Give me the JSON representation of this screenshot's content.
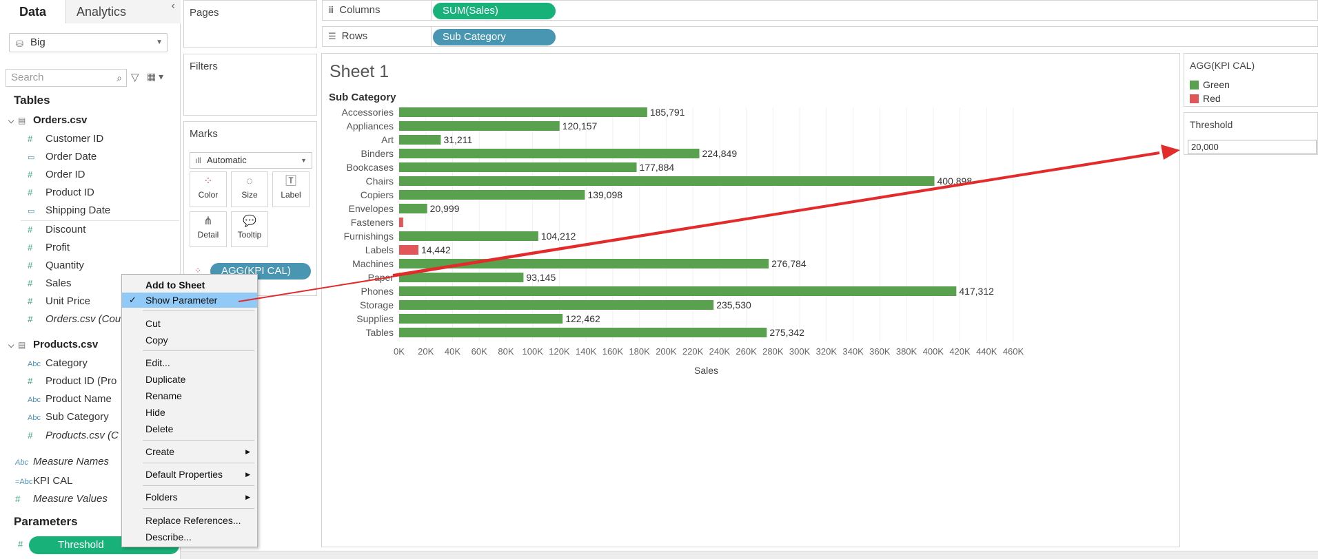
{
  "left_pane": {
    "tabs": {
      "data": "Data",
      "analytics": "Analytics"
    },
    "datasource": "Big",
    "search_placeholder": "Search",
    "tables_heading": "Tables",
    "orders_table": "Orders.csv",
    "orders_fields": [
      "Customer ID",
      "Order Date",
      "Order ID",
      "Product ID",
      "Shipping Date"
    ],
    "orders_measures": [
      "Discount",
      "Profit",
      "Quantity",
      "Sales",
      "Unit Price",
      "Orders.csv (Cou"
    ],
    "products_table": "Products.csv",
    "products_fields": [
      "Category",
      "Product ID (Pro",
      "Product Name",
      "Sub Category",
      "Products.csv (C"
    ],
    "other_fields": [
      "Measure Names",
      "KPI CAL",
      "Measure Values"
    ],
    "parameters_heading": "Parameters",
    "parameter": "Threshold"
  },
  "shelves": {
    "pages": "Pages",
    "filters": "Filters",
    "marks": "Marks",
    "columns_label": "Columns",
    "columns_pill": "SUM(Sales)",
    "rows_label": "Rows",
    "rows_pill": "Sub Category",
    "mark_type": "Automatic",
    "mark_buttons": [
      "Color",
      "Size",
      "Label",
      "Detail",
      "Tooltip"
    ],
    "color_pill": "AGG(KPI CAL)"
  },
  "sheet": {
    "title": "Sheet 1"
  },
  "legend": {
    "title": "AGG(KPI CAL)",
    "items": [
      {
        "label": "Green",
        "color": "#59a14f"
      },
      {
        "label": "Red",
        "color": "#e15759"
      }
    ]
  },
  "threshold": {
    "title": "Threshold",
    "value": "20,000"
  },
  "context_menu": {
    "add_to_sheet": "Add to Sheet",
    "show_parameter": "Show Parameter",
    "cut": "Cut",
    "copy": "Copy",
    "edit": "Edit...",
    "duplicate": "Duplicate",
    "rename": "Rename",
    "hide": "Hide",
    "delete": "Delete",
    "create": "Create",
    "default_properties": "Default Properties",
    "folders": "Folders",
    "replace_references": "Replace References...",
    "describe": "Describe..."
  },
  "chart_data": {
    "type": "bar",
    "orientation": "horizontal",
    "row_header": "Sub Category",
    "xlabel": "Sales",
    "xlim": [
      0,
      460000
    ],
    "xticks": [
      "0K",
      "20K",
      "40K",
      "60K",
      "80K",
      "100K",
      "120K",
      "140K",
      "160K",
      "180K",
      "200K",
      "220K",
      "240K",
      "260K",
      "280K",
      "300K",
      "320K",
      "340K",
      "360K",
      "380K",
      "400K",
      "420K",
      "440K",
      "460K"
    ],
    "categories": [
      "Accessories",
      "Appliances",
      "Art",
      "Binders",
      "Bookcases",
      "Chairs",
      "Copiers",
      "Envelopes",
      "Fasteners",
      "Furnishings",
      "Labels",
      "Machines",
      "Paper",
      "Phones",
      "Storage",
      "Supplies",
      "Tables"
    ],
    "values": [
      185791,
      120157,
      31211,
      224849,
      177884,
      400898,
      139098,
      20999,
      3024,
      104212,
      14442,
      276784,
      93145,
      417312,
      235530,
      122462,
      275342
    ],
    "data_labels": [
      "185,791",
      "120,157",
      "31,211",
      "224,849",
      "177,884",
      "400,898",
      "139,098",
      "20,999",
      "",
      "104,212",
      "14,442",
      "276,784",
      "93,145",
      "417,312",
      "235,530",
      "122,462",
      "275,342"
    ],
    "kpi": [
      "Green",
      "Green",
      "Green",
      "Green",
      "Green",
      "Green",
      "Green",
      "Green",
      "Red",
      "Green",
      "Red",
      "Green",
      "Green",
      "Green",
      "Green",
      "Green",
      "Green"
    ],
    "colors": {
      "Green": "#59a14f",
      "Red": "#e15759"
    }
  }
}
